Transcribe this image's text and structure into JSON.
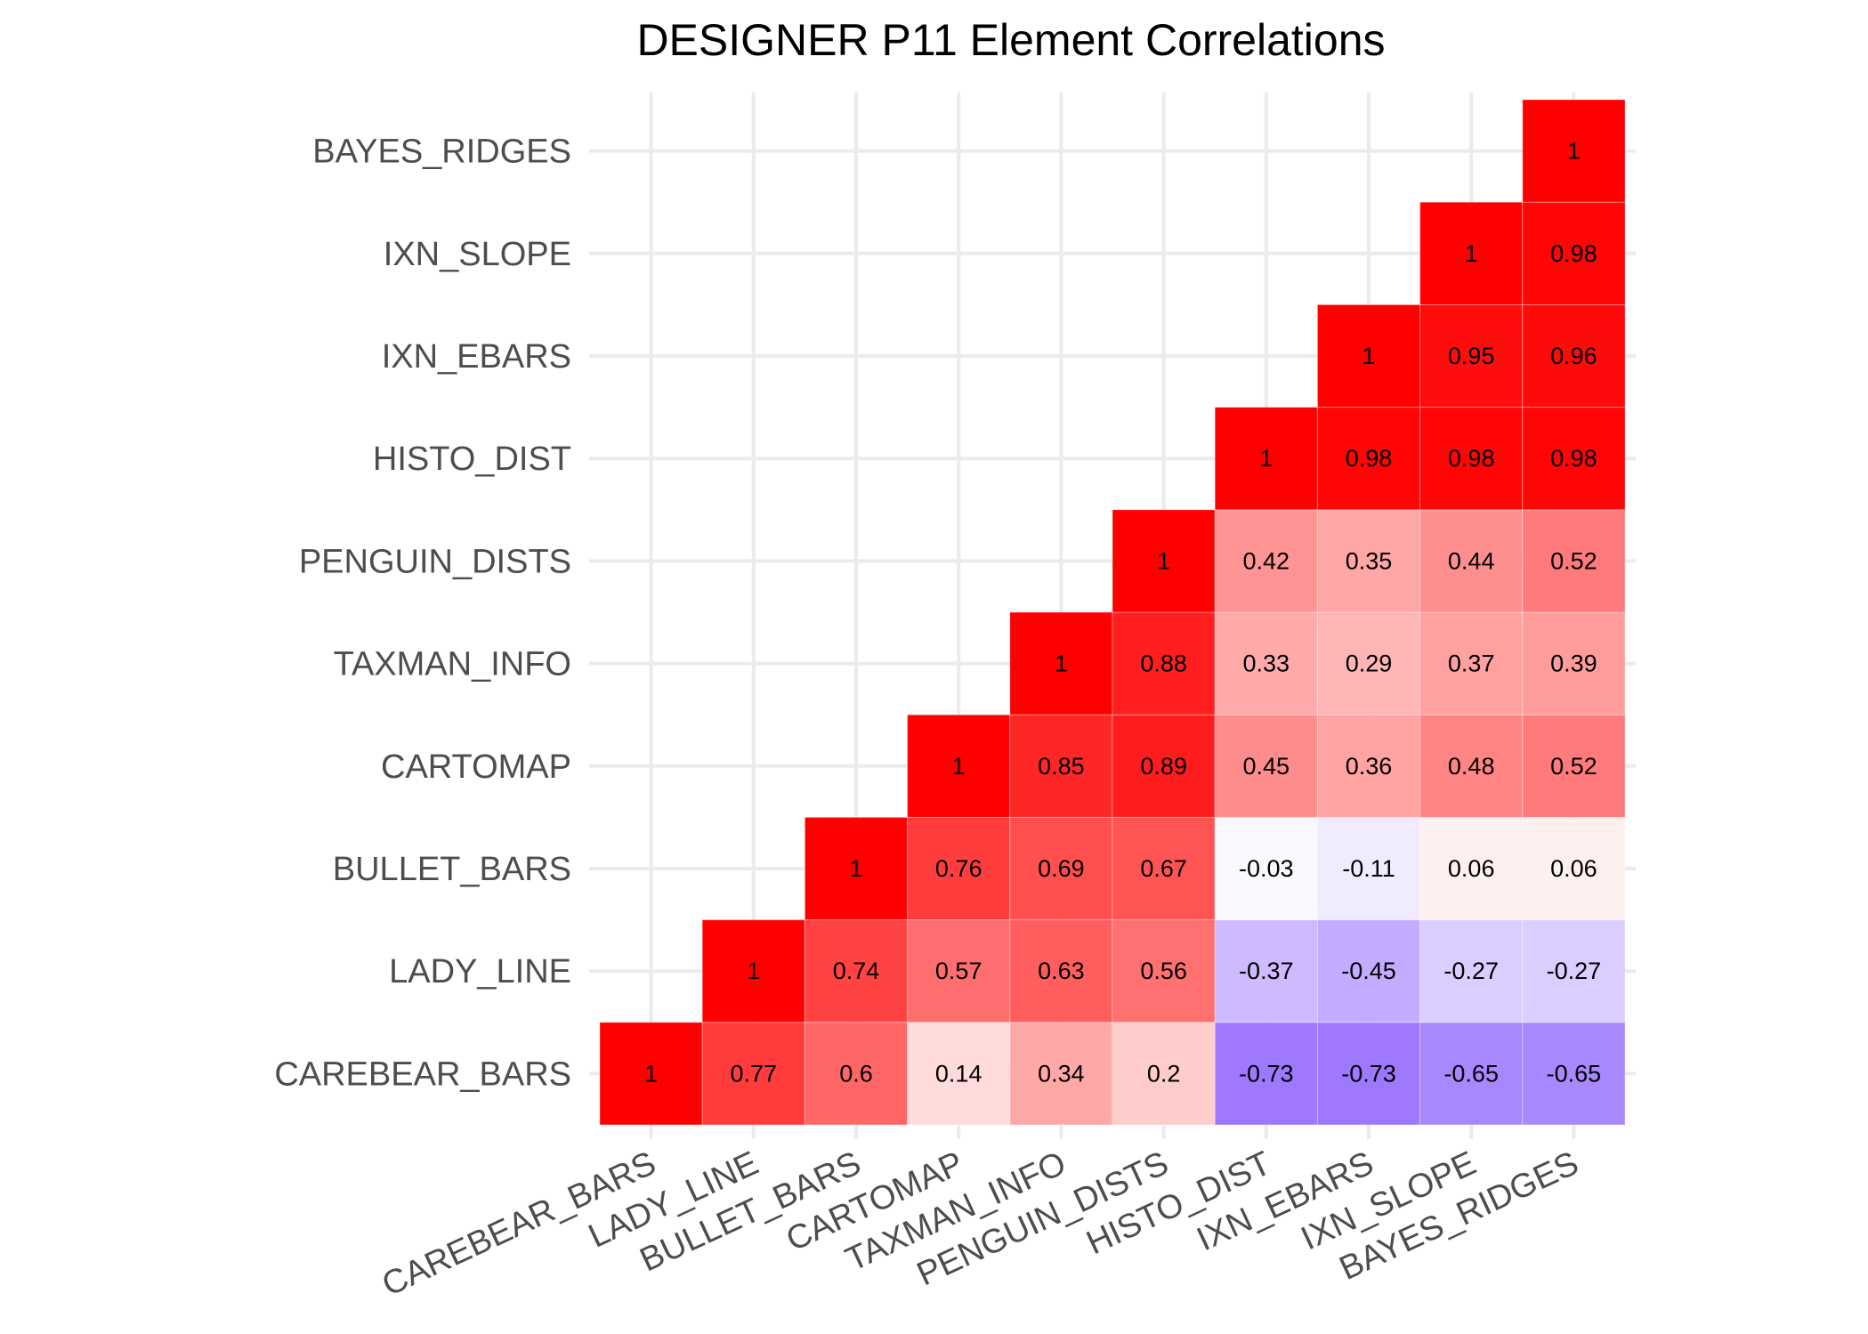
{
  "chart_data": {
    "type": "heatmap",
    "title": "DESIGNER P11 Element Correlations",
    "xlabel": "",
    "ylabel": "",
    "variables": [
      "CAREBEAR_BARS",
      "LADY_LINE",
      "BULLET_BARS",
      "CARTOMAP",
      "TAXMAN_INFO",
      "PENGUIN_DISTS",
      "HISTO_DIST",
      "IXN_EBARS",
      "IXN_SLOPE",
      "BAYES_RIDGES"
    ],
    "cells": [
      {
        "x": "CAREBEAR_BARS",
        "y": "CAREBEAR_BARS",
        "value": 1,
        "label": "1"
      },
      {
        "x": "LADY_LINE",
        "y": "CAREBEAR_BARS",
        "value": 0.77,
        "label": "0.77"
      },
      {
        "x": "BULLET_BARS",
        "y": "CAREBEAR_BARS",
        "value": 0.6,
        "label": "0.6"
      },
      {
        "x": "CARTOMAP",
        "y": "CAREBEAR_BARS",
        "value": 0.14,
        "label": "0.14"
      },
      {
        "x": "TAXMAN_INFO",
        "y": "CAREBEAR_BARS",
        "value": 0.34,
        "label": "0.34"
      },
      {
        "x": "PENGUIN_DISTS",
        "y": "CAREBEAR_BARS",
        "value": 0.2,
        "label": "0.2"
      },
      {
        "x": "HISTO_DIST",
        "y": "CAREBEAR_BARS",
        "value": -0.73,
        "label": "-0.73"
      },
      {
        "x": "IXN_EBARS",
        "y": "CAREBEAR_BARS",
        "value": -0.73,
        "label": "-0.73"
      },
      {
        "x": "IXN_SLOPE",
        "y": "CAREBEAR_BARS",
        "value": -0.65,
        "label": "-0.65"
      },
      {
        "x": "BAYES_RIDGES",
        "y": "CAREBEAR_BARS",
        "value": -0.65,
        "label": "-0.65"
      },
      {
        "x": "LADY_LINE",
        "y": "LADY_LINE",
        "value": 1,
        "label": "1"
      },
      {
        "x": "BULLET_BARS",
        "y": "LADY_LINE",
        "value": 0.74,
        "label": "0.74"
      },
      {
        "x": "CARTOMAP",
        "y": "LADY_LINE",
        "value": 0.57,
        "label": "0.57"
      },
      {
        "x": "TAXMAN_INFO",
        "y": "LADY_LINE",
        "value": 0.63,
        "label": "0.63"
      },
      {
        "x": "PENGUIN_DISTS",
        "y": "LADY_LINE",
        "value": 0.56,
        "label": "0.56"
      },
      {
        "x": "HISTO_DIST",
        "y": "LADY_LINE",
        "value": -0.37,
        "label": "-0.37"
      },
      {
        "x": "IXN_EBARS",
        "y": "LADY_LINE",
        "value": -0.45,
        "label": "-0.45"
      },
      {
        "x": "IXN_SLOPE",
        "y": "LADY_LINE",
        "value": -0.27,
        "label": "-0.27"
      },
      {
        "x": "BAYES_RIDGES",
        "y": "LADY_LINE",
        "value": -0.27,
        "label": "-0.27"
      },
      {
        "x": "BULLET_BARS",
        "y": "BULLET_BARS",
        "value": 1,
        "label": "1"
      },
      {
        "x": "CARTOMAP",
        "y": "BULLET_BARS",
        "value": 0.76,
        "label": "0.76"
      },
      {
        "x": "TAXMAN_INFO",
        "y": "BULLET_BARS",
        "value": 0.69,
        "label": "0.69"
      },
      {
        "x": "PENGUIN_DISTS",
        "y": "BULLET_BARS",
        "value": 0.67,
        "label": "0.67"
      },
      {
        "x": "HISTO_DIST",
        "y": "BULLET_BARS",
        "value": -0.03,
        "label": "-0.03"
      },
      {
        "x": "IXN_EBARS",
        "y": "BULLET_BARS",
        "value": -0.11,
        "label": "-0.11"
      },
      {
        "x": "IXN_SLOPE",
        "y": "BULLET_BARS",
        "value": 0.06,
        "label": "0.06"
      },
      {
        "x": "BAYES_RIDGES",
        "y": "BULLET_BARS",
        "value": 0.06,
        "label": "0.06"
      },
      {
        "x": "CARTOMAP",
        "y": "CARTOMAP",
        "value": 1,
        "label": "1"
      },
      {
        "x": "TAXMAN_INFO",
        "y": "CARTOMAP",
        "value": 0.85,
        "label": "0.85"
      },
      {
        "x": "PENGUIN_DISTS",
        "y": "CARTOMAP",
        "value": 0.89,
        "label": "0.89"
      },
      {
        "x": "HISTO_DIST",
        "y": "CARTOMAP",
        "value": 0.45,
        "label": "0.45"
      },
      {
        "x": "IXN_EBARS",
        "y": "CARTOMAP",
        "value": 0.36,
        "label": "0.36"
      },
      {
        "x": "IXN_SLOPE",
        "y": "CARTOMAP",
        "value": 0.48,
        "label": "0.48"
      },
      {
        "x": "BAYES_RIDGES",
        "y": "CARTOMAP",
        "value": 0.52,
        "label": "0.52"
      },
      {
        "x": "TAXMAN_INFO",
        "y": "TAXMAN_INFO",
        "value": 1,
        "label": "1"
      },
      {
        "x": "PENGUIN_DISTS",
        "y": "TAXMAN_INFO",
        "value": 0.88,
        "label": "0.88"
      },
      {
        "x": "HISTO_DIST",
        "y": "TAXMAN_INFO",
        "value": 0.33,
        "label": "0.33"
      },
      {
        "x": "IXN_EBARS",
        "y": "TAXMAN_INFO",
        "value": 0.29,
        "label": "0.29"
      },
      {
        "x": "IXN_SLOPE",
        "y": "TAXMAN_INFO",
        "value": 0.37,
        "label": "0.37"
      },
      {
        "x": "BAYES_RIDGES",
        "y": "TAXMAN_INFO",
        "value": 0.39,
        "label": "0.39"
      },
      {
        "x": "PENGUIN_DISTS",
        "y": "PENGUIN_DISTS",
        "value": 1,
        "label": "1"
      },
      {
        "x": "HISTO_DIST",
        "y": "PENGUIN_DISTS",
        "value": 0.42,
        "label": "0.42"
      },
      {
        "x": "IXN_EBARS",
        "y": "PENGUIN_DISTS",
        "value": 0.35,
        "label": "0.35"
      },
      {
        "x": "IXN_SLOPE",
        "y": "PENGUIN_DISTS",
        "value": 0.44,
        "label": "0.44"
      },
      {
        "x": "BAYES_RIDGES",
        "y": "PENGUIN_DISTS",
        "value": 0.52,
        "label": "0.52"
      },
      {
        "x": "HISTO_DIST",
        "y": "HISTO_DIST",
        "value": 1,
        "label": "1"
      },
      {
        "x": "IXN_EBARS",
        "y": "HISTO_DIST",
        "value": 0.98,
        "label": "0.98"
      },
      {
        "x": "IXN_SLOPE",
        "y": "HISTO_DIST",
        "value": 0.98,
        "label": "0.98"
      },
      {
        "x": "BAYES_RIDGES",
        "y": "HISTO_DIST",
        "value": 0.98,
        "label": "0.98"
      },
      {
        "x": "IXN_EBARS",
        "y": "IXN_EBARS",
        "value": 1,
        "label": "1"
      },
      {
        "x": "IXN_SLOPE",
        "y": "IXN_EBARS",
        "value": 0.95,
        "label": "0.95"
      },
      {
        "x": "BAYES_RIDGES",
        "y": "IXN_EBARS",
        "value": 0.96,
        "label": "0.96"
      },
      {
        "x": "IXN_SLOPE",
        "y": "IXN_SLOPE",
        "value": 1,
        "label": "1"
      },
      {
        "x": "BAYES_RIDGES",
        "y": "IXN_SLOPE",
        "value": 0.98,
        "label": "0.98"
      },
      {
        "x": "BAYES_RIDGES",
        "y": "BAYES_RIDGES",
        "value": 1,
        "label": "1"
      }
    ],
    "colors": {
      "high": "#ff0000",
      "mid": "#ffffff",
      "low": "#7a46ff",
      "grid": "#ebebeb",
      "axis_text": "#4d4d4d"
    },
    "value_range": [
      -1,
      1
    ],
    "grid": true,
    "legend": "none"
  }
}
